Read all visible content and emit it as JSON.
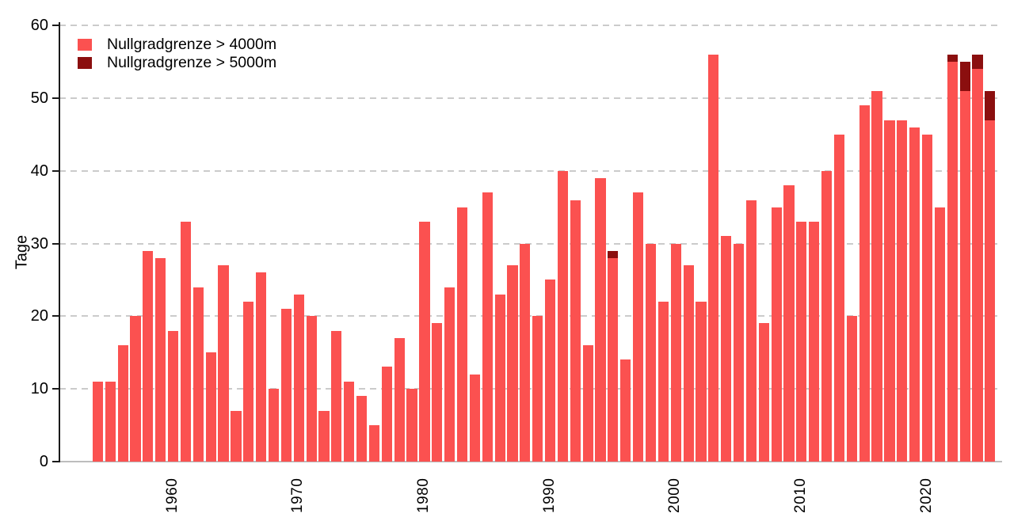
{
  "chart_data": {
    "type": "bar",
    "stacked": true,
    "title": "",
    "ylabel": "Tage",
    "xlabel": "",
    "ylim": [
      0,
      60
    ],
    "yticks": [
      0,
      10,
      20,
      30,
      40,
      50,
      60
    ],
    "xticks": [
      1960,
      1970,
      1980,
      1990,
      2000,
      2010,
      2020
    ],
    "grid": "horizontal-dashed",
    "legend_position": "top-left-inside",
    "legend": [
      {
        "label": "Nullgradgrenze > 4000m",
        "color": "#fb5150"
      },
      {
        "label": "Nullgradgrenze > 5000m",
        "color": "#8b0f0f"
      }
    ],
    "years": [
      1954,
      1955,
      1956,
      1957,
      1958,
      1959,
      1960,
      1961,
      1962,
      1963,
      1964,
      1965,
      1966,
      1967,
      1968,
      1969,
      1970,
      1971,
      1972,
      1973,
      1974,
      1975,
      1976,
      1977,
      1978,
      1979,
      1980,
      1981,
      1982,
      1983,
      1984,
      1985,
      1986,
      1987,
      1988,
      1989,
      1990,
      1991,
      1992,
      1993,
      1994,
      1995,
      1996,
      1997,
      1998,
      1999,
      2000,
      2001,
      2002,
      2003,
      2004,
      2005,
      2006,
      2007,
      2008,
      2009,
      2010,
      2011,
      2012,
      2013,
      2014,
      2015,
      2016,
      2017,
      2018,
      2019,
      2020,
      2021,
      2022,
      2023,
      2024,
      2025
    ],
    "series": [
      {
        "name": "Nullgradgrenze > 4000m (Tage total)",
        "values": [
          11,
          11,
          16,
          20,
          29,
          28,
          18,
          33,
          24,
          15,
          27,
          7,
          22,
          26,
          10,
          21,
          23,
          20,
          7,
          18,
          11,
          9,
          5,
          13,
          17,
          10,
          33,
          19,
          24,
          35,
          12,
          37,
          23,
          27,
          30,
          20,
          25,
          40,
          36,
          16,
          39,
          29,
          14,
          37,
          30,
          22,
          30,
          27,
          22,
          56,
          31,
          30,
          36,
          19,
          35,
          38,
          33,
          33,
          40,
          45,
          20,
          49,
          51,
          47,
          47,
          46,
          45,
          35,
          56,
          55,
          56,
          51
        ]
      },
      {
        "name": "Nullgradgrenze > 5000m (Tage, Teilmenge)",
        "values": [
          0,
          0,
          0,
          0,
          0,
          0,
          0,
          0,
          0,
          0,
          0,
          0,
          0,
          0,
          0,
          0,
          0,
          0,
          0,
          0,
          0,
          0,
          0,
          0,
          0,
          0,
          0,
          0,
          0,
          0,
          0,
          0,
          0,
          0,
          0,
          0,
          0,
          0,
          0,
          0,
          0,
          1,
          0,
          0,
          0,
          0,
          0,
          0,
          0,
          0,
          0,
          0,
          0,
          0,
          0,
          0,
          0,
          0,
          0,
          0,
          0,
          0,
          0,
          0,
          0,
          0,
          0,
          0,
          1,
          4,
          2,
          4
        ]
      }
    ]
  },
  "colors": {
    "bar_light": "#fb5150",
    "bar_dark": "#8b0f0f",
    "gridline": "#cbcbcb",
    "baseline": "#bdbdbd",
    "axis": "#1a1a1a",
    "text": "#000000",
    "background": "#ffffff"
  }
}
